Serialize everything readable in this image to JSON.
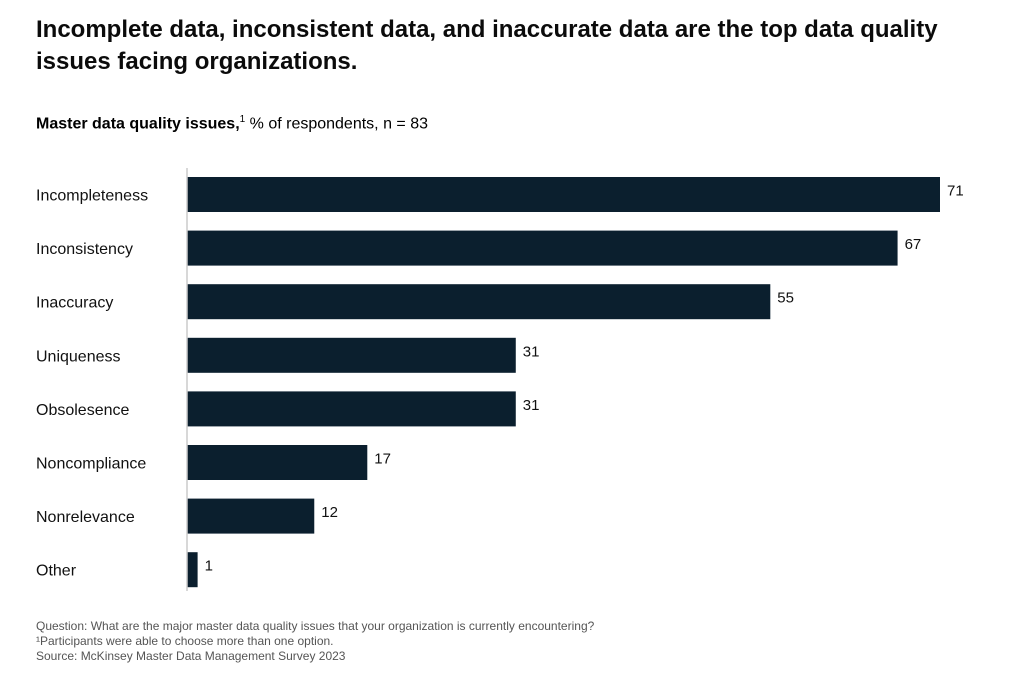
{
  "title": "Incomplete data, inconsistent data, and inaccurate data are the top data quality issues facing organizations.",
  "subtitle": {
    "bold": "Master data quality issues,",
    "footnote_mark": "1",
    "rest": " % of respondents, n = 83"
  },
  "chart_data": {
    "type": "bar",
    "orientation": "horizontal",
    "categories": [
      "Incompleteness",
      "Inconsistency",
      "Inaccuracy",
      "Uniqueness",
      "Obsolesence",
      "Noncompliance",
      "Nonrelevance",
      "Other"
    ],
    "values": [
      71,
      67,
      55,
      31,
      31,
      17,
      12,
      1
    ],
    "xlim": [
      0,
      71
    ],
    "grid": false,
    "bar_color": "#0b1f2e"
  },
  "notes": {
    "question": "Question: What are the major master data quality issues that your organization is currently encountering?",
    "footnote": "¹Participants were able to choose more than one option.",
    "source": "Source: McKinsey Master Data Management Survey 2023"
  }
}
